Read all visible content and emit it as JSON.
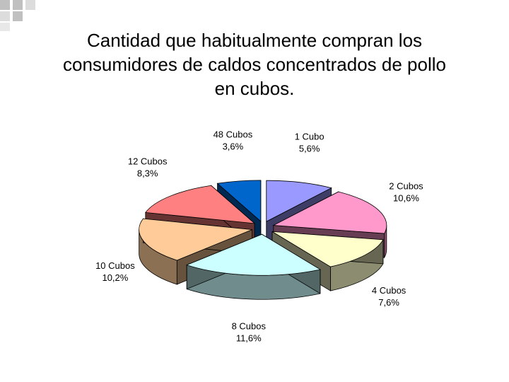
{
  "slide": {
    "title_lines": [
      "Cantidad que habitualmente compran los",
      "consumidores de caldos concentrados de pollo",
      "en cubos."
    ]
  },
  "chart_data": {
    "type": "pie",
    "title": "Cantidad que habitualmente compran los consumidores de caldos concentrados de pollo en cubos.",
    "style": "3d-exploded",
    "slices": [
      {
        "name": "1 Cubo",
        "value": 5.6,
        "label": "5,6%",
        "color": "#9999ff"
      },
      {
        "name": "2 Cubos",
        "value": 10.6,
        "label": "10,6%",
        "color": "#ff99cc"
      },
      {
        "name": "4 Cubos",
        "value": 7.6,
        "label": "7,6%",
        "color": "#ffffcc"
      },
      {
        "name": "8 Cubos",
        "value": 11.6,
        "label": "11,6%",
        "color": "#ccffff"
      },
      {
        "name": "10 Cubos",
        "value": 10.2,
        "label": "10,2%",
        "color": "#ffcc99"
      },
      {
        "name": "12 Cubos",
        "value": 8.3,
        "label": "8,3%",
        "color": "#ff8080"
      },
      {
        "name": "48 Cubos",
        "value": 3.6,
        "label": "3,6%",
        "color": "#0066cc"
      }
    ]
  }
}
